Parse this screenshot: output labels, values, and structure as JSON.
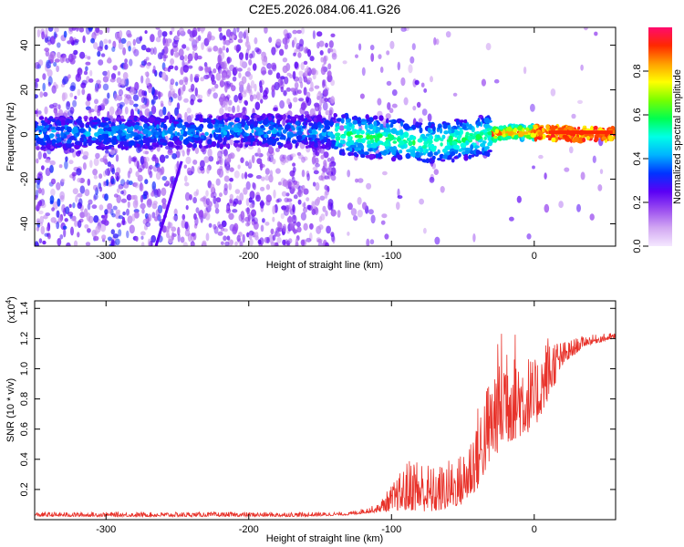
{
  "title": "C2E5.2026.084.06.41.G26",
  "chart_data": [
    {
      "type": "heatmap",
      "xlabel": "Height of straight line (km)",
      "ylabel": "Frequency (Hz)",
      "xlim": [
        -350,
        57
      ],
      "ylim": [
        -50,
        48
      ],
      "x_ticks": [
        -300,
        -200,
        -100,
        0
      ],
      "y_ticks": [
        -40,
        -20,
        0,
        20,
        40
      ],
      "colorbar": {
        "label": "Normalized spectral amplitude",
        "range": [
          0,
          1
        ],
        "ticks": [
          "0.0",
          "0.2",
          "0.4",
          "0.6",
          "0.8"
        ],
        "colors": [
          "#f5e8ff",
          "#d2a8f2",
          "#9b4df0",
          "#5a00f5",
          "#0033ff",
          "#00b4ff",
          "#00ffe6",
          "#00ff50",
          "#78ff00",
          "#ffff00",
          "#ffa000",
          "#ff2800",
          "#ff0a6e"
        ]
      },
      "ridge": [
        {
          "x": -350,
          "y": 0.5
        },
        {
          "x": -250,
          "y": 1
        },
        {
          "x": -200,
          "y": 2
        },
        {
          "x": -150,
          "y": 1
        },
        {
          "x": -100,
          "y": -2
        },
        {
          "x": -80,
          "y": -4
        },
        {
          "x": -60,
          "y": -3
        },
        {
          "x": -40,
          "y": -1
        },
        {
          "x": -20,
          "y": 1
        },
        {
          "x": 0,
          "y": 1
        },
        {
          "x": 20,
          "y": 0.5
        },
        {
          "x": 57,
          "y": 0
        }
      ]
    },
    {
      "type": "line",
      "xlabel": "Height of straight line (km)",
      "ylabel": "SNR (10 * v/v)",
      "scale_label": "(x10",
      "scale_exp": "4",
      "xlim": [
        -350,
        57
      ],
      "ylim": [
        0,
        1.45
      ],
      "x_ticks": [
        -300,
        -200,
        -100,
        0
      ],
      "y_ticks": [
        "0.2",
        "0.4",
        "0.6",
        "0.8",
        "1.0",
        "1.2",
        "1.4"
      ],
      "series": [
        {
          "color": "#e8322a",
          "envelope": [
            {
              "x": -350,
              "base": 0.02,
              "peak": 0.05
            },
            {
              "x": -250,
              "base": 0.02,
              "peak": 0.05
            },
            {
              "x": -160,
              "base": 0.02,
              "peak": 0.05
            },
            {
              "x": -130,
              "base": 0.03,
              "peak": 0.05
            },
            {
              "x": -110,
              "base": 0.05,
              "peak": 0.1
            },
            {
              "x": -95,
              "base": 0.06,
              "peak": 0.3
            },
            {
              "x": -85,
              "base": 0.06,
              "peak": 0.45
            },
            {
              "x": -70,
              "base": 0.05,
              "peak": 0.35
            },
            {
              "x": -50,
              "base": 0.1,
              "peak": 0.45
            },
            {
              "x": -40,
              "base": 0.2,
              "peak": 0.75
            },
            {
              "x": -30,
              "base": 0.4,
              "peak": 1.0
            },
            {
              "x": -20,
              "base": 0.5,
              "peak": 1.4
            },
            {
              "x": -10,
              "base": 0.55,
              "peak": 1.2
            },
            {
              "x": 0,
              "base": 0.6,
              "peak": 1.05
            },
            {
              "x": 10,
              "base": 0.8,
              "peak": 1.25
            },
            {
              "x": 20,
              "base": 1.02,
              "peak": 1.18
            },
            {
              "x": 35,
              "base": 1.15,
              "peak": 1.22
            },
            {
              "x": 57,
              "base": 1.2,
              "peak": 1.24
            }
          ]
        }
      ]
    }
  ]
}
